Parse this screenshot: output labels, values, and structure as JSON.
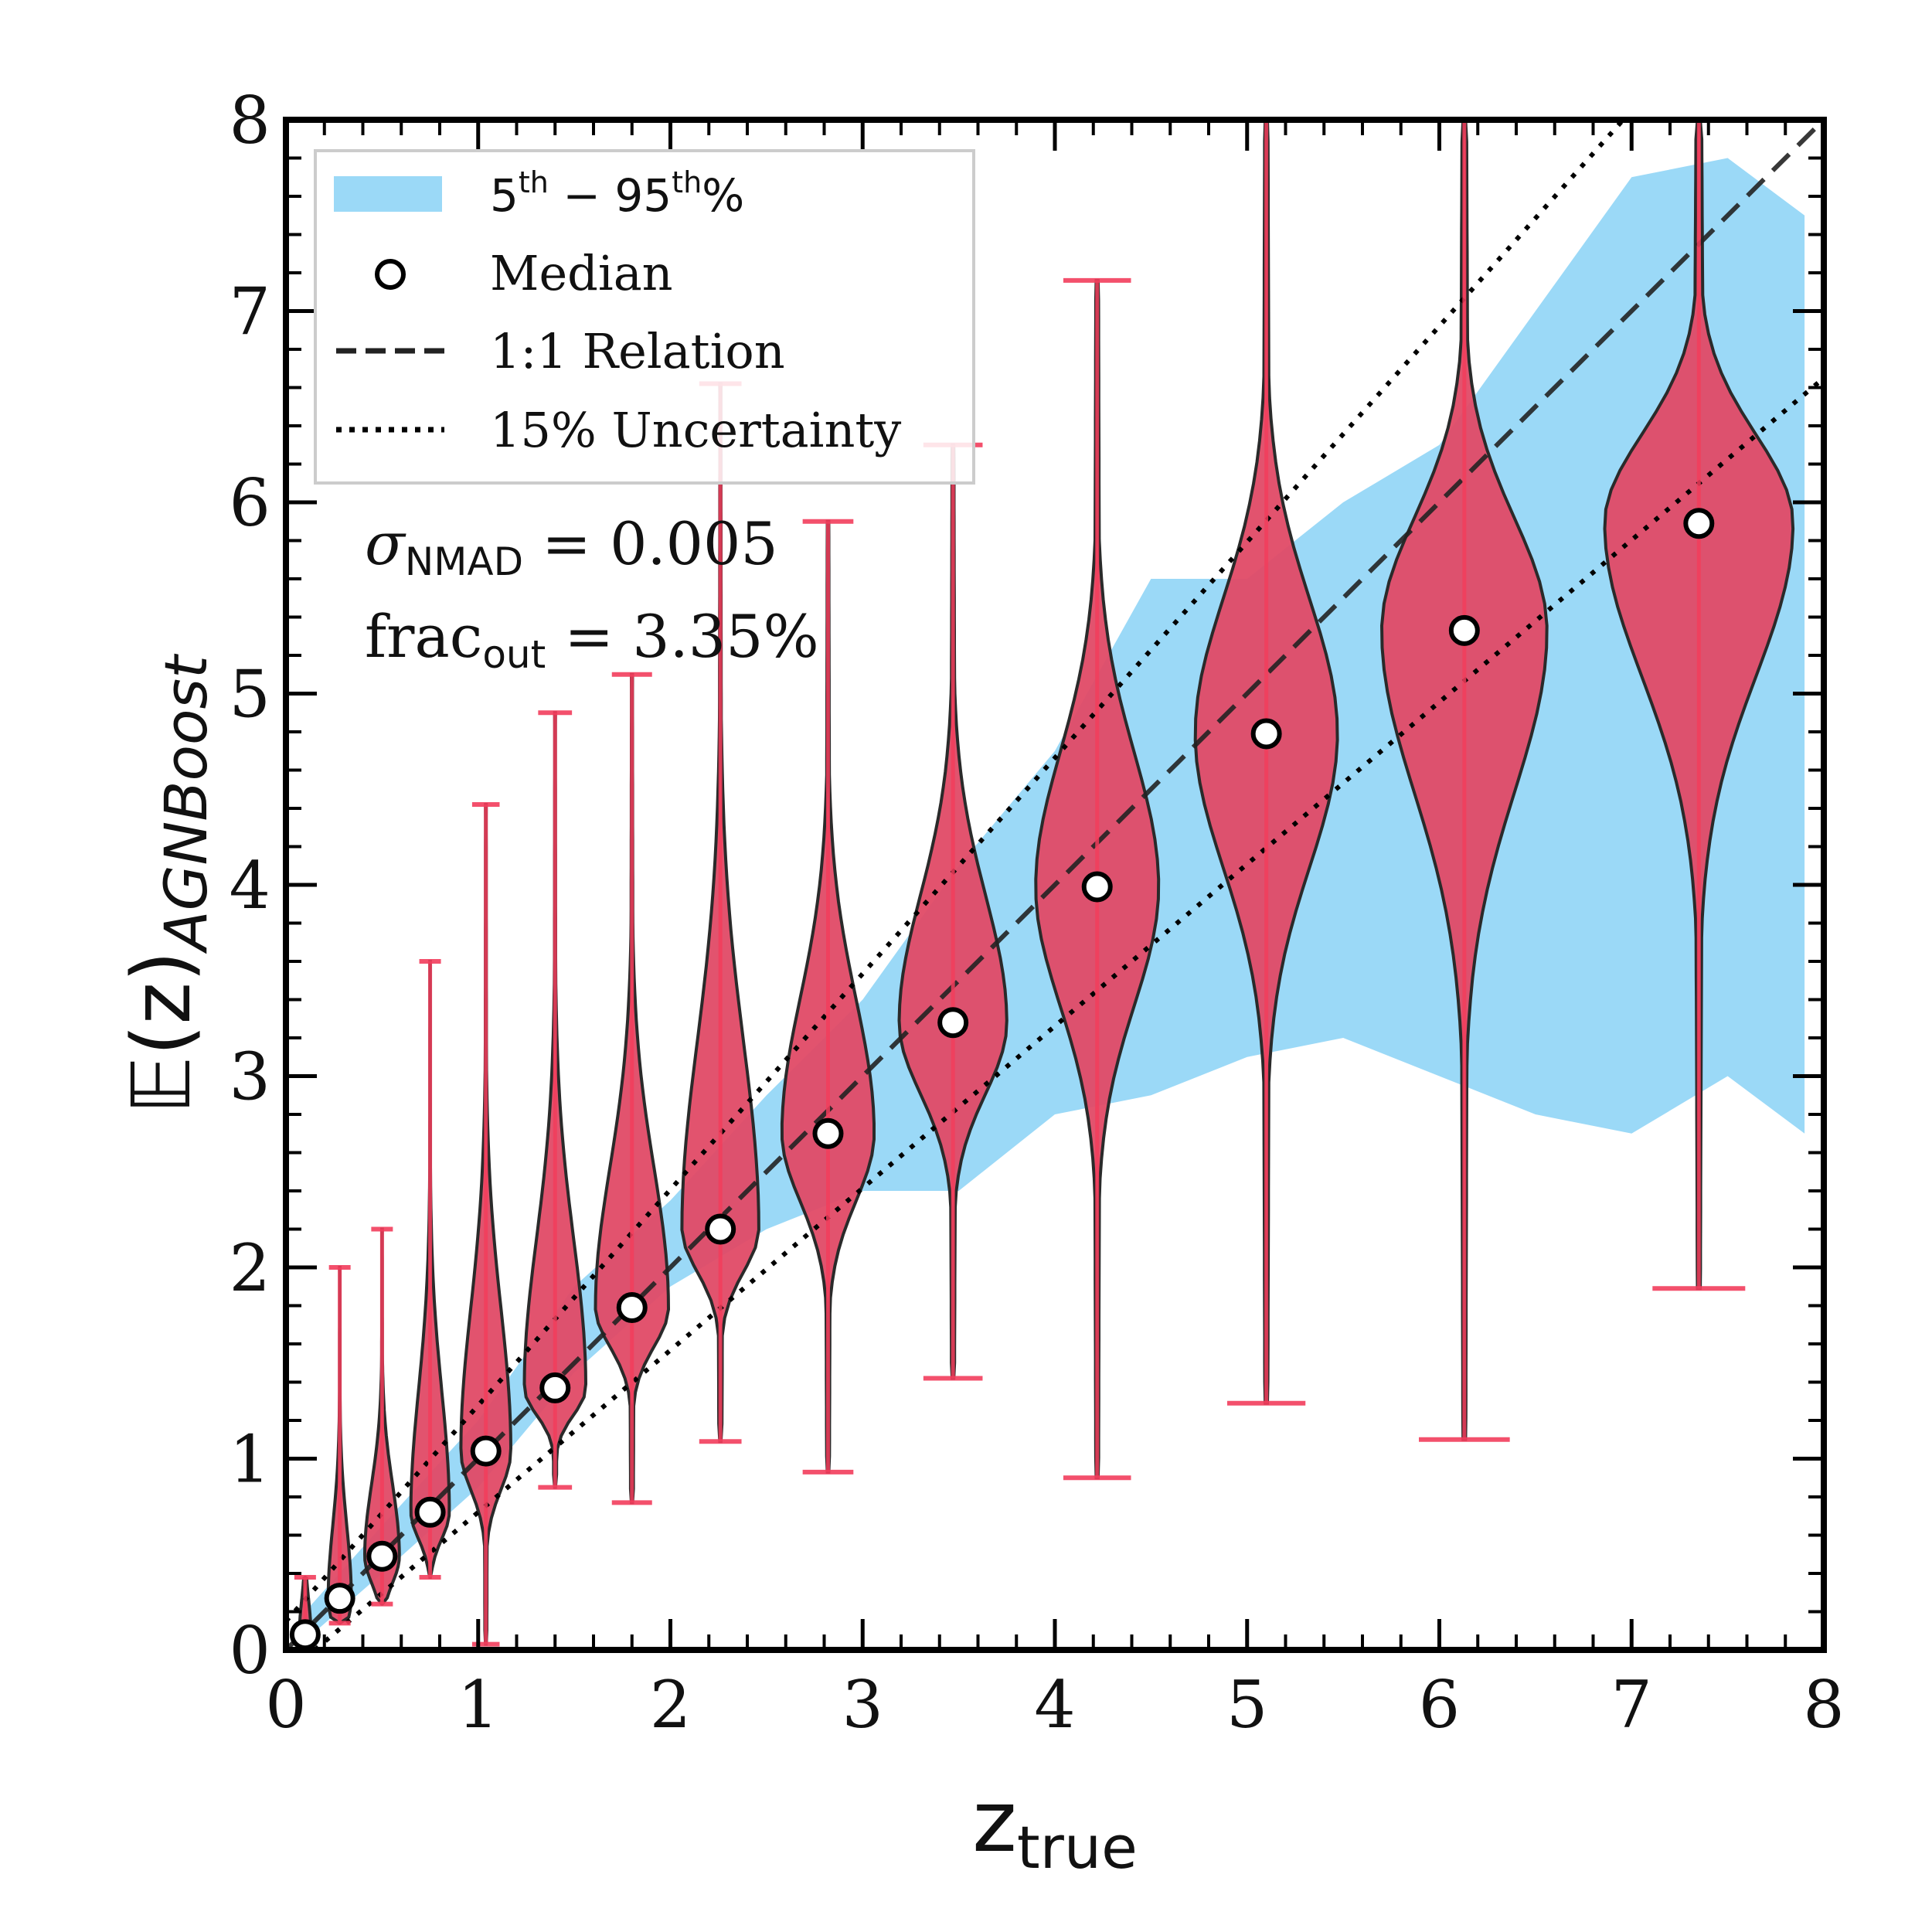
{
  "chart_data": {
    "type": "violin",
    "xlabel_main": "z",
    "xlabel_sub": "true",
    "ylabel_main": "𝔼(z)",
    "ylabel_sub": "AGNBoost",
    "xlim": [
      0,
      8
    ],
    "ylim": [
      0,
      8
    ],
    "xticks": [
      "0",
      "1",
      "2",
      "3",
      "4",
      "5",
      "6",
      "7",
      "8"
    ],
    "yticks": [
      "0",
      "1",
      "2",
      "3",
      "4",
      "5",
      "6",
      "7",
      "8"
    ],
    "legend": {
      "band_base": "5",
      "band_sup1": "th",
      "band_mid": " − 95",
      "band_sup2": "th",
      "band_tail": "%",
      "median": "Median",
      "one_to_one": "1:1 Relation",
      "uncertainty": "15% Uncertainty"
    },
    "stats": {
      "sigma_sym": "σ",
      "sigma_sub": "NMAD",
      "sigma_value": " = 0.005",
      "frac_base": "frac",
      "frac_sub": "out",
      "frac_value": " = 3.35%"
    },
    "band": {
      "x": [
        0.1,
        0.5,
        1.0,
        1.5,
        2.0,
        2.5,
        3.0,
        3.5,
        4.0,
        4.5,
        5.0,
        5.5,
        6.0,
        6.5,
        7.0,
        7.5,
        7.9
      ],
      "upper": [
        0.2,
        0.65,
        1.2,
        1.9,
        2.35,
        2.9,
        3.4,
        4.1,
        4.7,
        5.6,
        5.6,
        6.0,
        6.3,
        7.0,
        7.7,
        7.8,
        7.5
      ],
      "lower": [
        0.05,
        0.4,
        0.85,
        1.45,
        1.9,
        2.2,
        2.4,
        2.4,
        2.8,
        2.9,
        3.1,
        3.2,
        3.0,
        2.8,
        2.7,
        3.0,
        2.7
      ]
    },
    "violins": [
      {
        "x": 0.1,
        "median": 0.08,
        "min": 0.0,
        "max": 0.38,
        "halfwidth": 0.03
      },
      {
        "x": 0.28,
        "median": 0.27,
        "min": 0.14,
        "max": 2.0,
        "halfwidth": 0.06
      },
      {
        "x": 0.5,
        "median": 0.49,
        "min": 0.24,
        "max": 2.2,
        "halfwidth": 0.09
      },
      {
        "x": 0.75,
        "median": 0.72,
        "min": 0.38,
        "max": 3.6,
        "halfwidth": 0.1
      },
      {
        "x": 1.04,
        "median": 1.04,
        "min": 0.03,
        "max": 4.42,
        "halfwidth": 0.13
      },
      {
        "x": 1.4,
        "median": 1.37,
        "min": 0.85,
        "max": 4.9,
        "halfwidth": 0.16
      },
      {
        "x": 1.8,
        "median": 1.79,
        "min": 0.77,
        "max": 5.1,
        "halfwidth": 0.19
      },
      {
        "x": 2.26,
        "median": 2.2,
        "min": 1.09,
        "max": 6.62,
        "halfwidth": 0.2
      },
      {
        "x": 2.82,
        "median": 2.7,
        "min": 0.93,
        "max": 5.9,
        "halfwidth": 0.24
      },
      {
        "x": 3.47,
        "median": 3.28,
        "min": 1.42,
        "max": 6.3,
        "halfwidth": 0.28
      },
      {
        "x": 4.22,
        "median": 3.99,
        "min": 0.9,
        "max": 7.16,
        "halfwidth": 0.32
      },
      {
        "x": 5.1,
        "median": 4.79,
        "min": 1.29,
        "max": 8.0,
        "halfwidth": 0.37
      },
      {
        "x": 6.13,
        "median": 5.33,
        "min": 1.1,
        "max": 8.0,
        "halfwidth": 0.43
      },
      {
        "x": 7.35,
        "median": 5.89,
        "min": 1.89,
        "max": 8.0,
        "halfwidth": 0.49
      }
    ],
    "colors": {
      "band": "#9bd9f7",
      "violin_fill": "#e04a66",
      "violin_edge": "#2a2a2a",
      "errorbar": "#f23d5c",
      "median_fill": "#ffffff",
      "line": "#222222"
    }
  }
}
